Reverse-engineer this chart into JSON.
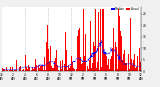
{
  "n_points": 1440,
  "seed": 42,
  "background_color": "#f0f0f0",
  "plot_bg_color": "#ffffff",
  "bar_color": "#ff0000",
  "median_color": "#0000ff",
  "ylim": [
    0,
    28
  ],
  "xlim": [
    0,
    1440
  ],
  "vgrid_color": "#aaaaaa",
  "vgrid_positions": [
    240,
    480,
    720,
    960,
    1200
  ],
  "yticks": [
    0,
    5,
    10,
    15,
    20,
    25
  ],
  "xtick_step": 120,
  "legend_actual_color": "#ff0000",
  "legend_median_color": "#0000ff",
  "title_fontsize": 3.0,
  "tick_fontsize": 2.2,
  "legend_fontsize": 2.0
}
